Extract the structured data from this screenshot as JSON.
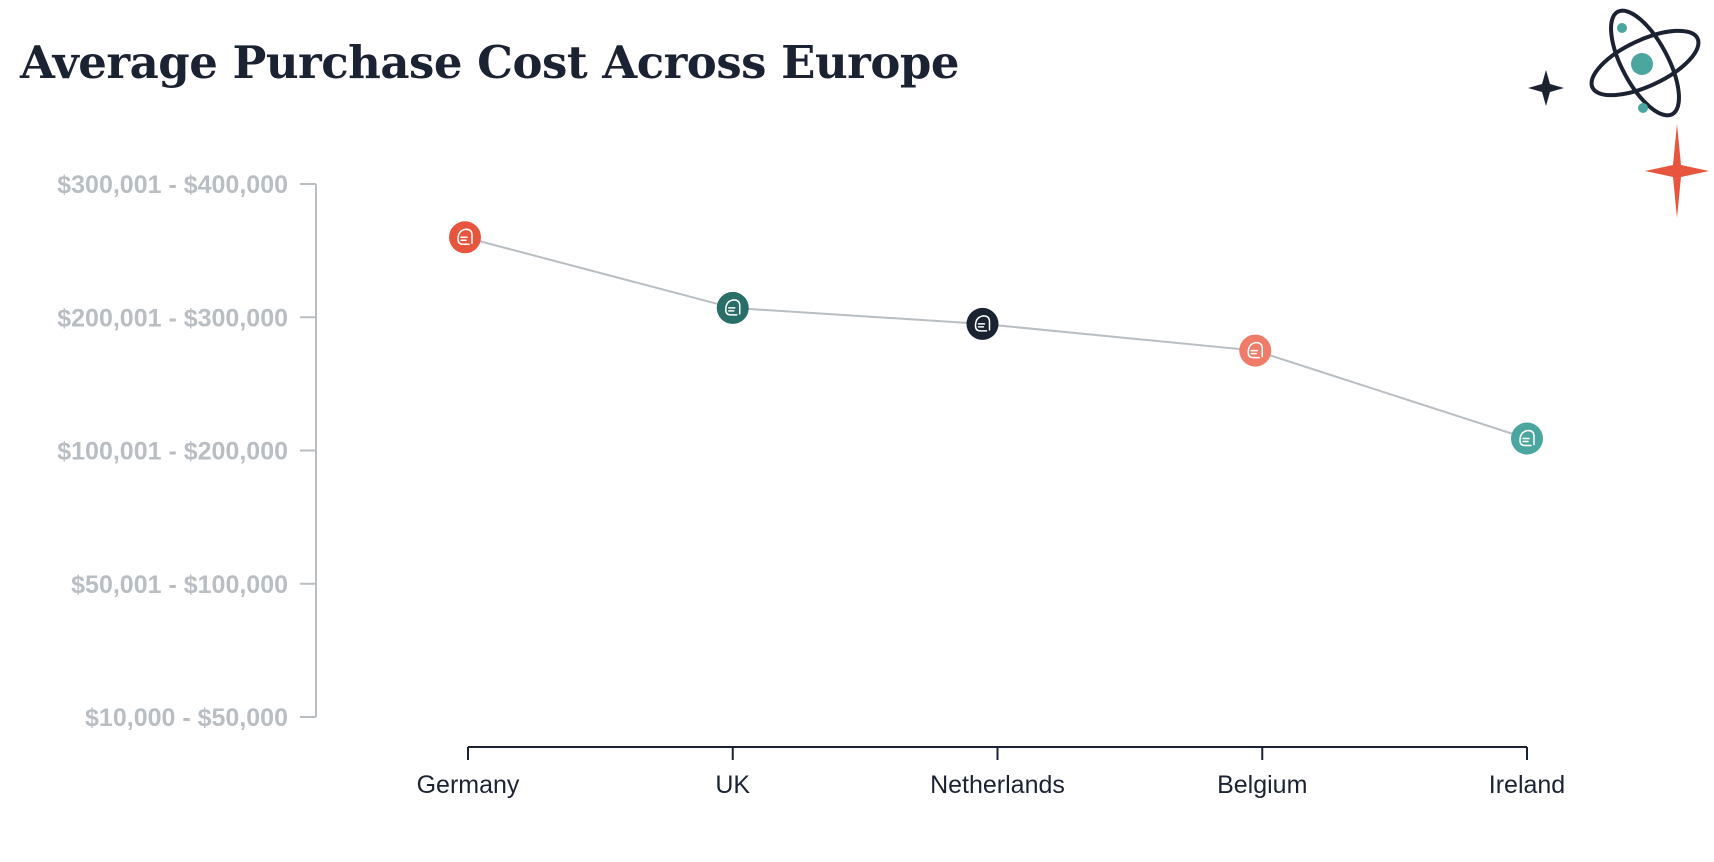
{
  "title": "Average Purchase Cost Across Europe",
  "chart_data": {
    "type": "line",
    "title": "Average Purchase Cost Across Europe",
    "xlabel": "",
    "ylabel": "",
    "categories": [
      "Germany",
      "UK",
      "Netherlands",
      "Belgium",
      "Ireland"
    ],
    "y_categories": [
      "$10,000 - $50,000",
      "$50,001 - $100,000",
      "$100,001 - $200,000",
      "$200,001 - $300,000",
      "$300,001 - $400,000"
    ],
    "ylim": [
      0,
      4
    ],
    "values": [
      3.6,
      3.07,
      2.95,
      2.75,
      2.09
    ],
    "grid": false,
    "line_color": "#b9bec3",
    "marker_colors": [
      "#e8553f",
      "#2a6e68",
      "#1b2333",
      "#ef7b69",
      "#4aa69e"
    ],
    "marker_icon": "avatar-icon"
  },
  "colors": {
    "title": "#1b2333",
    "axis_gray": "#b9bec3",
    "axis_dark": "#1b2333",
    "accent_red": "#e8553f",
    "accent_teal": "#4aa69e"
  },
  "decorations": [
    "atom-icon",
    "small-star-icon",
    "red-sparkle-icon"
  ]
}
